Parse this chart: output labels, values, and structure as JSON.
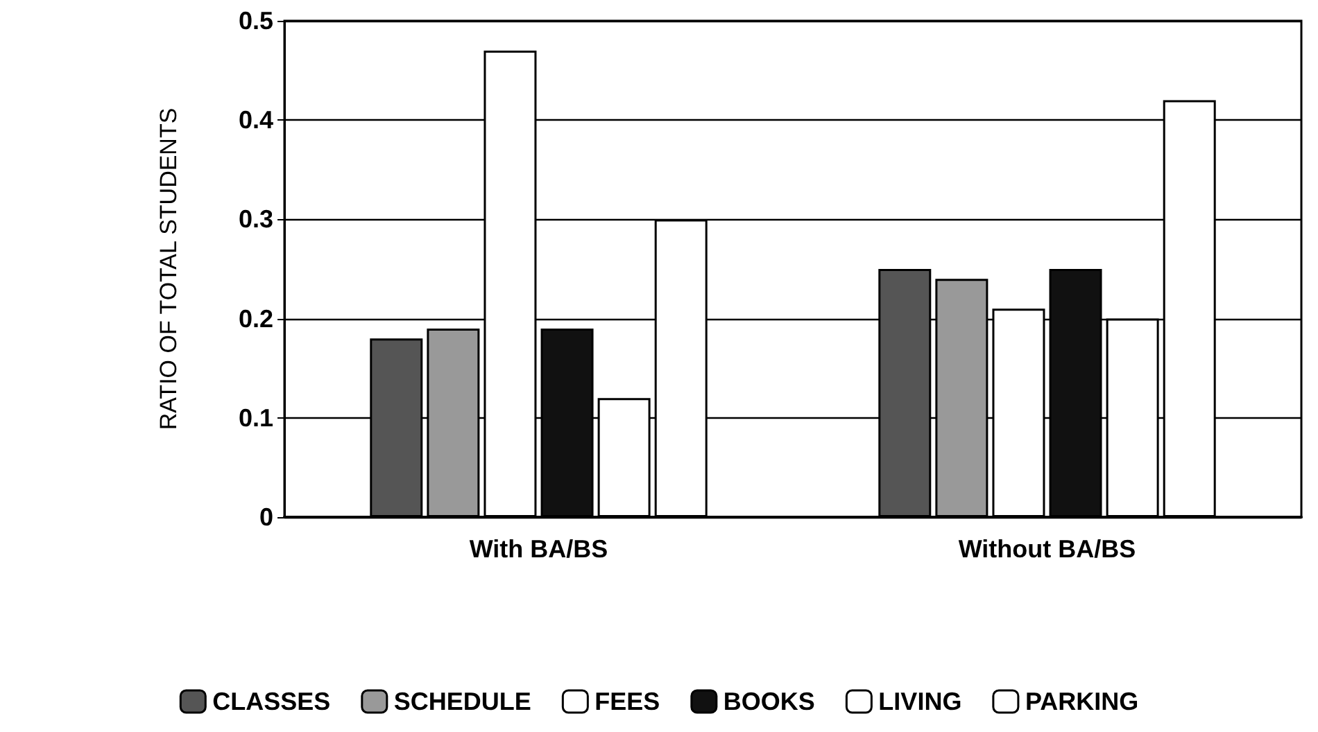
{
  "chart_data": {
    "type": "bar",
    "ylabel": "RATIO OF TOTAL STUDENTS",
    "categories": [
      "With BA/BS",
      "Without BA/BS"
    ],
    "series": [
      {
        "name": "CLASSES",
        "color": "#555555",
        "values": [
          0.18,
          0.25
        ]
      },
      {
        "name": "SCHEDULE",
        "color": "#999999",
        "values": [
          0.19,
          0.24
        ]
      },
      {
        "name": "FEES",
        "color": "#ffffff",
        "values": [
          0.47,
          0.21
        ]
      },
      {
        "name": "BOOKS",
        "color": "#111111",
        "values": [
          0.19,
          0.25
        ]
      },
      {
        "name": "LIVING",
        "color": "#ffffff",
        "values": [
          0.12,
          0.2
        ]
      },
      {
        "name": "PARKING",
        "color": "#ffffff",
        "values": [
          0.3,
          0.42
        ]
      }
    ],
    "ylim": [
      0,
      0.5
    ],
    "yticks": [
      0,
      0.1,
      0.2,
      0.3,
      0.4,
      0.5
    ],
    "grid": "y",
    "legend": "bottom"
  }
}
